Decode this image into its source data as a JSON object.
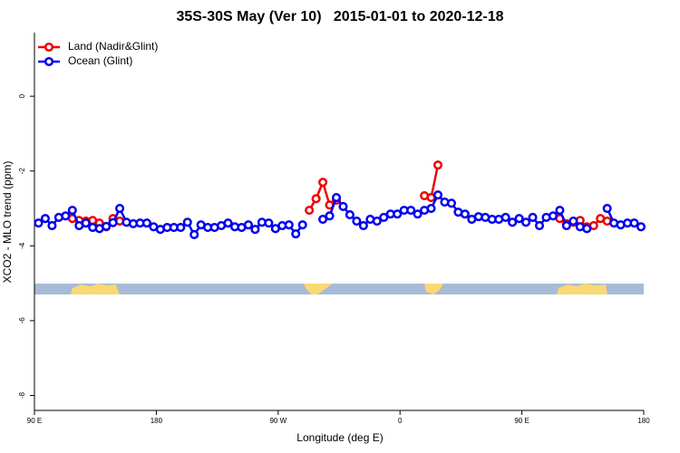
{
  "chart_data": {
    "type": "line",
    "title": "35S-30S May (Ver 10)   2015-01-01 to 2020-12-18",
    "x_label": "Longitude (deg E)",
    "y_label": "XCO2 - MLO trend (ppm)",
    "x": [
      93,
      98,
      103,
      108,
      113,
      118,
      123,
      128,
      133,
      138,
      143,
      148,
      153,
      158,
      163,
      168,
      173,
      178,
      183,
      188,
      193,
      198,
      203,
      208,
      213,
      218,
      223,
      228,
      233,
      238,
      243,
      248,
      253,
      258,
      263,
      268,
      273,
      278,
      283,
      288,
      293,
      298,
      303,
      308,
      313,
      318,
      323,
      328,
      333,
      338,
      343,
      348,
      353,
      358,
      363,
      368,
      373,
      378,
      383,
      388,
      393,
      398,
      403,
      408,
      413,
      418,
      423,
      428,
      433,
      438,
      443,
      448,
      453,
      458,
      463,
      468,
      473,
      478,
      483,
      488,
      493,
      498,
      503,
      508,
      513,
      518,
      523,
      528,
      533,
      538
    ],
    "series": [
      {
        "name": "Land (Nadir&Glint)",
        "color": "#ee0000",
        "values": [
          null,
          null,
          null,
          null,
          null,
          -3.27,
          -3.32,
          -3.34,
          -3.32,
          -3.39,
          -3.49,
          -3.27,
          -3.34,
          null,
          null,
          null,
          null,
          null,
          null,
          null,
          null,
          null,
          null,
          null,
          null,
          null,
          null,
          null,
          null,
          null,
          null,
          null,
          null,
          null,
          null,
          null,
          null,
          null,
          null,
          null,
          -3.05,
          -2.74,
          -2.3,
          -2.91,
          -2.78,
          null,
          null,
          null,
          null,
          null,
          null,
          null,
          null,
          null,
          null,
          null,
          null,
          -2.66,
          -2.71,
          -1.84,
          null,
          null,
          null,
          null,
          null,
          null,
          null,
          null,
          null,
          null,
          null,
          null,
          null,
          null,
          null,
          null,
          null,
          -3.27,
          -3.41,
          -3.37,
          -3.32,
          -3.49,
          -3.46,
          -3.27,
          -3.34,
          null,
          null,
          null,
          null,
          null
        ]
      },
      {
        "name": "Ocean (Glint)",
        "color": "#0000ee",
        "values": [
          -3.39,
          -3.27,
          -3.46,
          -3.24,
          -3.2,
          -3.05,
          -3.46,
          -3.39,
          -3.51,
          -3.54,
          -3.48,
          -3.38,
          -3.0,
          -3.37,
          -3.41,
          -3.39,
          -3.39,
          -3.49,
          -3.56,
          -3.51,
          -3.51,
          -3.51,
          -3.37,
          -3.7,
          -3.44,
          -3.51,
          -3.51,
          -3.46,
          -3.39,
          -3.49,
          -3.51,
          -3.44,
          -3.56,
          -3.37,
          -3.39,
          -3.54,
          -3.46,
          -3.44,
          -3.68,
          -3.44,
          null,
          null,
          -3.29,
          -3.2,
          -2.71,
          -2.95,
          -3.17,
          -3.34,
          -3.46,
          -3.29,
          -3.34,
          -3.24,
          -3.15,
          -3.15,
          -3.05,
          -3.05,
          -3.15,
          -3.05,
          -3.0,
          -2.64,
          -2.83,
          -2.86,
          -3.1,
          -3.15,
          -3.29,
          -3.22,
          -3.24,
          -3.29,
          -3.29,
          -3.24,
          -3.37,
          -3.27,
          -3.37,
          -3.24,
          -3.46,
          -3.24,
          -3.2,
          -3.05,
          -3.46,
          -3.34,
          -3.49,
          -3.54,
          null,
          null,
          -3.0,
          -3.39,
          -3.44,
          -3.39,
          -3.39,
          -3.49
        ]
      }
    ],
    "xlim": [
      90,
      540
    ],
    "xticks": [
      {
        "value": 90,
        "label": "90 E"
      },
      {
        "value": 180,
        "label": "180"
      },
      {
        "value": 270,
        "label": "90 W"
      },
      {
        "value": 360,
        "label": "0"
      },
      {
        "value": 450,
        "label": "90 E"
      },
      {
        "value": 540,
        "label": "180"
      }
    ],
    "ylim": [
      -8.4,
      1.7
    ],
    "yticks": [
      0,
      -2,
      -4,
      -6,
      -8
    ],
    "legend": "topleft"
  }
}
